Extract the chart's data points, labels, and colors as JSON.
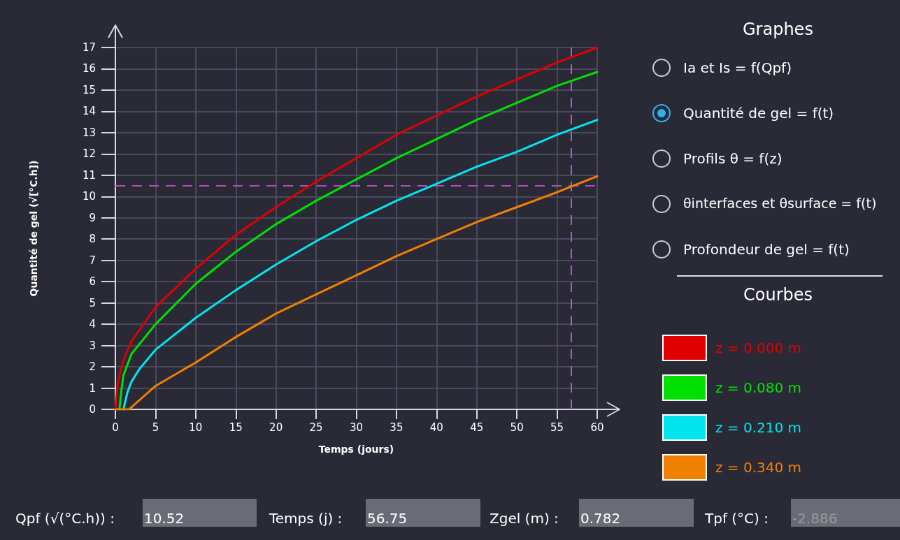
{
  "chart_data": {
    "type": "line",
    "xlabel": "Temps (jours)",
    "ylabel": "Quantité de gel (√[°C.h])",
    "legend_title": "Courbes",
    "legend": "right",
    "xlim": [
      0,
      60
    ],
    "xticks": [
      0,
      5,
      10,
      15,
      20,
      25,
      30,
      35,
      40,
      45,
      50,
      55,
      60
    ],
    "ylim": [
      0,
      17
    ],
    "yticks": [
      0,
      1,
      2,
      3,
      4,
      5,
      6,
      7,
      8,
      9,
      10,
      11,
      12,
      13,
      14,
      15,
      16,
      17
    ],
    "grid": true,
    "marker": "none",
    "line_style": "solid",
    "series": [
      {
        "name": "z = 0.000 m",
        "color": "#e00000",
        "x": [
          0,
          0.25,
          0.5,
          1,
          2,
          5,
          10,
          15,
          20,
          25,
          30,
          35,
          40,
          45,
          50,
          55,
          60
        ],
        "values": [
          0,
          1.1,
          1.6,
          2.3,
          3.2,
          4.8,
          6.6,
          8.2,
          9.5,
          10.7,
          11.8,
          12.9,
          13.8,
          14.7,
          15.5,
          16.3,
          17
        ]
      },
      {
        "name": "z = 0.080 m",
        "color": "#00e000",
        "x": [
          0.5,
          0.75,
          1,
          2,
          5,
          10,
          15,
          20,
          25,
          30,
          35,
          40,
          45,
          50,
          55,
          60
        ],
        "values": [
          0,
          0.9,
          1.6,
          2.6,
          4.0,
          5.9,
          7.4,
          8.7,
          9.8,
          10.8,
          11.8,
          12.7,
          13.6,
          14.4,
          15.2,
          15.85
        ]
      },
      {
        "name": "z = 0.210 m",
        "color": "#00e5ee",
        "x": [
          1,
          1.5,
          2,
          3,
          5,
          10,
          15,
          20,
          25,
          30,
          35,
          40,
          45,
          50,
          55,
          60
        ],
        "values": [
          0,
          0.8,
          1.3,
          1.9,
          2.8,
          4.3,
          5.6,
          6.8,
          7.9,
          8.9,
          9.8,
          10.6,
          11.4,
          12.1,
          12.9,
          13.6
        ]
      },
      {
        "name": "z = 0.340 m",
        "color": "#f08000",
        "x": [
          0,
          1.7,
          5,
          10,
          15,
          20,
          25,
          30,
          35,
          40,
          45,
          50,
          55,
          60
        ],
        "values": [
          0,
          0,
          1.1,
          2.2,
          3.4,
          4.5,
          5.4,
          6.3,
          7.2,
          8.0,
          8.8,
          9.5,
          10.2,
          10.95
        ]
      }
    ],
    "ref_lines": [
      {
        "axis": "y",
        "value": 10.52,
        "color": "#b04ec0",
        "line_style": "dashed"
      },
      {
        "axis": "x",
        "value": 56.75,
        "color": "#c050d0",
        "line_style": "dashed"
      }
    ],
    "annotations": [
      "Graphes",
      "Ia et Is = f(Qpf)",
      "Quantité de gel = f(t)",
      "Profils θ = f(z)",
      "θinterfaces et θsurface = f(t)",
      "Profondeur de gel = f(t)",
      "Qpf (√(°C.h)) :",
      "10.52",
      "Temps (j) :",
      "56.75",
      "Zgel (m) :",
      "0.782",
      "Tpf (°C) :",
      "-2.886"
    ]
  }
}
